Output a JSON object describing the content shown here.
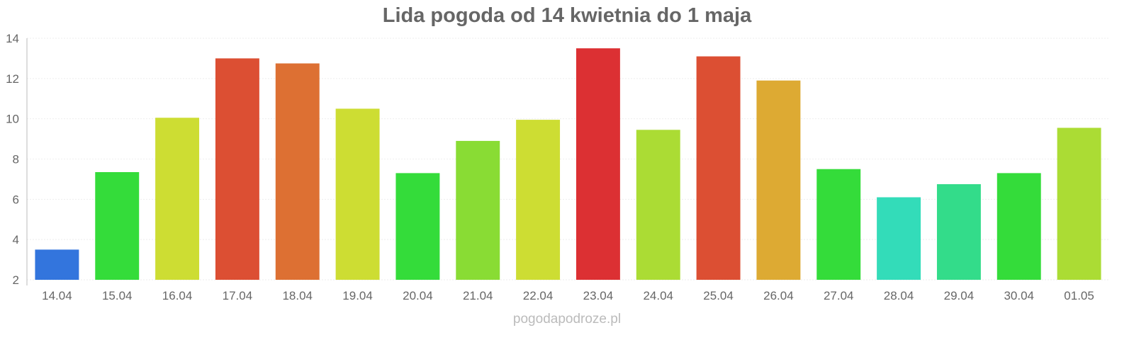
{
  "chart_data": {
    "type": "bar",
    "title": "Lida pogoda od 14 kwietnia do 1 maja",
    "xlabel": "",
    "ylabel": "",
    "ylim": [
      2,
      14
    ],
    "yticks": [
      2,
      4,
      6,
      8,
      10,
      12,
      14
    ],
    "grid": true,
    "categories": [
      "14.04",
      "15.04",
      "16.04",
      "17.04",
      "18.04",
      "19.04",
      "20.04",
      "21.04",
      "22.04",
      "23.04",
      "24.04",
      "25.04",
      "26.04",
      "27.04",
      "28.04",
      "29.04",
      "30.04",
      "01.05"
    ],
    "values": [
      3.5,
      7.35,
      10.05,
      13.0,
      12.75,
      10.5,
      7.3,
      8.9,
      9.95,
      13.5,
      9.45,
      13.1,
      11.9,
      7.5,
      6.1,
      6.75,
      7.3,
      9.55
    ],
    "colors": [
      "#3375dd",
      "#34dc3a",
      "#cddd33",
      "#dc4f33",
      "#dd7033",
      "#cddd33",
      "#34dc3a",
      "#89dc34",
      "#cddd33",
      "#dc3033",
      "#abdc34",
      "#dc4f33",
      "#ddaa33",
      "#34dc3a",
      "#33dcb9",
      "#33dc8a",
      "#34dc3a",
      "#abdc34"
    ]
  },
  "footer": "pogodapodroze.pl"
}
